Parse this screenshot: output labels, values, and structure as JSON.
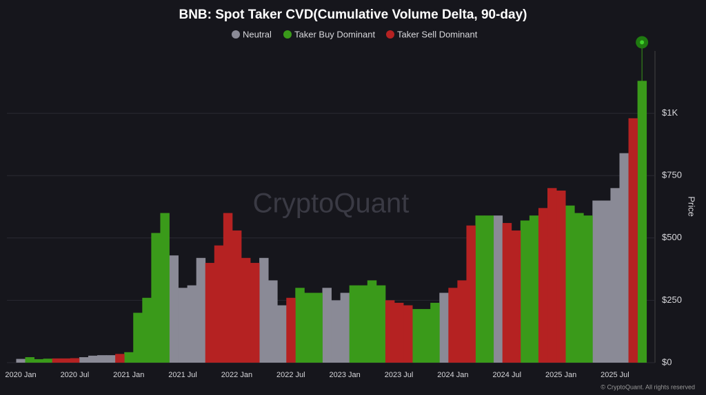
{
  "chart_data": {
    "type": "bar",
    "title": "BNB: Spot Taker CVD(Cumulative Volume Delta, 90-day)",
    "y_label": "Price",
    "watermark": "CryptoQuant",
    "footer": "© CryptoQuant. All rights reserved",
    "legend": "top",
    "categories": [
      "2020 Jan",
      null,
      null,
      null,
      null,
      null,
      "2020 Jul",
      null,
      null,
      null,
      null,
      null,
      "2021 Jan",
      null,
      null,
      null,
      null,
      null,
      "2021 Jul",
      null,
      null,
      null,
      null,
      null,
      "2022 Jan",
      null,
      null,
      null,
      null,
      null,
      "2022 Jul",
      null,
      null,
      null,
      null,
      null,
      "2023 Jan",
      null,
      null,
      null,
      null,
      null,
      "2023 Jul",
      null,
      null,
      null,
      null,
      null,
      "2024 Jan",
      null,
      null,
      null,
      null,
      null,
      "2024 Jul",
      null,
      null,
      null,
      null,
      null,
      "2025 Jan",
      null,
      null,
      null,
      null,
      null,
      "2025 Jul",
      null,
      null,
      null
    ],
    "series": [
      {
        "name": "Neutral",
        "color": "#8a8a96",
        "values": [
          15,
          null,
          null,
          null,
          null,
          null,
          null,
          22,
          28,
          30,
          30,
          null,
          null,
          null,
          null,
          null,
          null,
          430,
          300,
          310,
          420,
          null,
          null,
          null,
          null,
          null,
          null,
          420,
          330,
          230,
          null,
          null,
          null,
          null,
          300,
          250,
          280,
          null,
          null,
          null,
          null,
          null,
          null,
          null,
          null,
          null,
          null,
          280,
          null,
          null,
          null,
          null,
          null,
          590,
          null,
          null,
          null,
          null,
          null,
          null,
          null,
          null,
          null,
          null,
          650,
          650,
          700,
          840,
          null,
          null
        ]
      },
      {
        "name": "Taker Buy Dominant",
        "color": "#3a9a1a",
        "values": [
          null,
          22,
          14,
          16,
          null,
          null,
          null,
          null,
          null,
          null,
          null,
          null,
          42,
          200,
          260,
          520,
          600,
          null,
          null,
          null,
          null,
          null,
          null,
          null,
          null,
          null,
          null,
          null,
          null,
          null,
          null,
          300,
          280,
          280,
          null,
          null,
          null,
          310,
          310,
          330,
          310,
          null,
          null,
          null,
          215,
          215,
          240,
          null,
          null,
          null,
          null,
          590,
          590,
          null,
          null,
          null,
          570,
          590,
          null,
          null,
          null,
          630,
          600,
          590,
          null,
          null,
          null,
          null,
          null,
          1130
        ]
      },
      {
        "name": "Taker Sell Dominant",
        "color": "#b52222",
        "values": [
          null,
          null,
          null,
          null,
          17,
          17,
          18,
          null,
          null,
          null,
          null,
          35,
          null,
          null,
          null,
          null,
          null,
          null,
          null,
          null,
          null,
          400,
          470,
          600,
          530,
          420,
          400,
          null,
          null,
          null,
          260,
          null,
          null,
          null,
          null,
          null,
          null,
          null,
          null,
          null,
          null,
          250,
          240,
          230,
          null,
          null,
          null,
          null,
          300,
          330,
          550,
          null,
          null,
          null,
          560,
          530,
          null,
          null,
          620,
          700,
          690,
          null,
          null,
          null,
          null,
          null,
          null,
          null,
          980,
          null
        ]
      }
    ],
    "ylim": [
      0,
      1250
    ],
    "yticks": [
      {
        "value": 0,
        "label": "$0"
      },
      {
        "value": 250,
        "label": "$250"
      },
      {
        "value": 500,
        "label": "$500"
      },
      {
        "value": 750,
        "label": "$750"
      },
      {
        "value": 1000,
        "label": "$1K"
      }
    ],
    "grid": true
  }
}
